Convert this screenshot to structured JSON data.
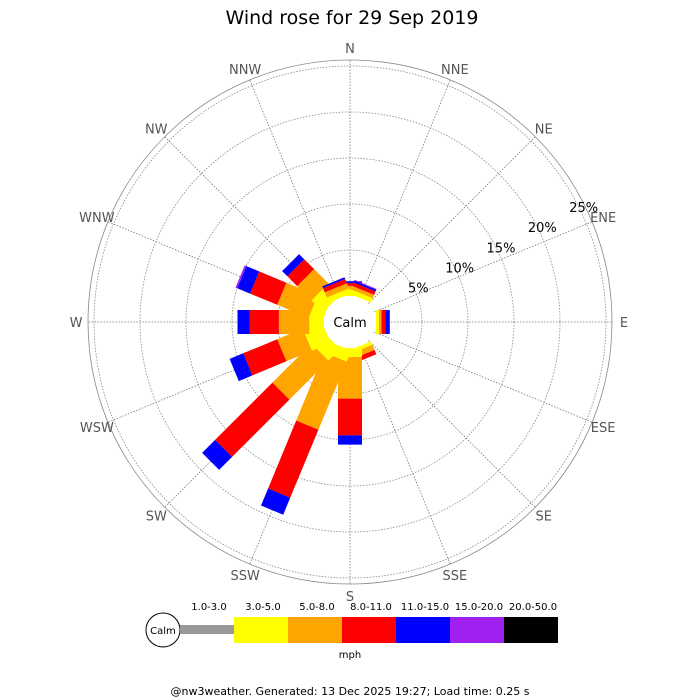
{
  "chart_data": {
    "type": "wind-rose",
    "title": "Wind rose for 29 Sep 2019",
    "calm_label": "Calm",
    "unit_label": "mph",
    "directions": [
      "N",
      "NNE",
      "NE",
      "ENE",
      "E",
      "ESE",
      "SE",
      "SSE",
      "S",
      "SSW",
      "SW",
      "WSW",
      "W",
      "WNW",
      "NW",
      "NNW"
    ],
    "ring_labels": [
      "5%",
      "10%",
      "15%",
      "20%",
      "25%"
    ],
    "ring_values": [
      5,
      10,
      15,
      20,
      25
    ],
    "speed_bands": [
      {
        "label": "1.0-3.0",
        "color": "#999999"
      },
      {
        "label": "3.0-5.0",
        "color": "#ffff00"
      },
      {
        "label": "5.0-8.0",
        "color": "#ffa500"
      },
      {
        "label": "8.0-11.0",
        "color": "#ff0000"
      },
      {
        "label": "11.0-15.0",
        "color": "#0000ff"
      },
      {
        "label": "15.0-20.0",
        "color": "#a020f0"
      },
      {
        "label": "20.0-50.0",
        "color": "#000000"
      }
    ],
    "series": [
      {
        "direction": "N",
        "values": [
          0,
          0.5,
          0.6,
          0.3,
          0.2,
          0,
          0
        ]
      },
      {
        "direction": "NNE",
        "values": [
          0,
          0.5,
          0.4,
          0.4,
          0.2,
          0.1,
          0
        ]
      },
      {
        "direction": "NE",
        "values": [
          0,
          0,
          0,
          0,
          0,
          0,
          0
        ]
      },
      {
        "direction": "ENE",
        "values": [
          0,
          0,
          0,
          0,
          0,
          0,
          0
        ]
      },
      {
        "direction": "E",
        "values": [
          0,
          0.3,
          0.3,
          0.4,
          0.5,
          0,
          0
        ]
      },
      {
        "direction": "ESE",
        "values": [
          0,
          0,
          0,
          0,
          0,
          0,
          0
        ]
      },
      {
        "direction": "SE",
        "values": [
          0,
          0,
          0,
          0,
          0,
          0,
          0
        ]
      },
      {
        "direction": "SSE",
        "values": [
          0,
          0.4,
          0.6,
          0.5,
          0,
          0,
          0
        ]
      },
      {
        "direction": "S",
        "values": [
          0,
          1.0,
          4.5,
          4.0,
          1.0,
          0,
          0
        ]
      },
      {
        "direction": "SSW",
        "values": [
          0,
          1.3,
          8.0,
          8.0,
          2.0,
          0,
          0
        ]
      },
      {
        "direction": "SW",
        "values": [
          0,
          1.8,
          6.0,
          8.8,
          2.0,
          0,
          0
        ]
      },
      {
        "direction": "WSW",
        "values": [
          0,
          2.2,
          3.0,
          4.0,
          1.6,
          0,
          0
        ]
      },
      {
        "direction": "W",
        "values": [
          0,
          1.6,
          3.3,
          3.2,
          1.3,
          0,
          0
        ]
      },
      {
        "direction": "WNW",
        "values": [
          0,
          1.5,
          3.7,
          3.2,
          1.5,
          0.2,
          0
        ]
      },
      {
        "direction": "NW",
        "values": [
          0,
          1.8,
          2.2,
          1.5,
          0.8,
          0,
          0
        ]
      },
      {
        "direction": "NNW",
        "values": [
          0,
          0.6,
          0.6,
          0.5,
          0.2,
          0,
          0
        ]
      }
    ]
  },
  "footer": {
    "text": "@nw3weather. Generated: 13 Dec 2025 19:27; Load time: 0.25 s"
  }
}
